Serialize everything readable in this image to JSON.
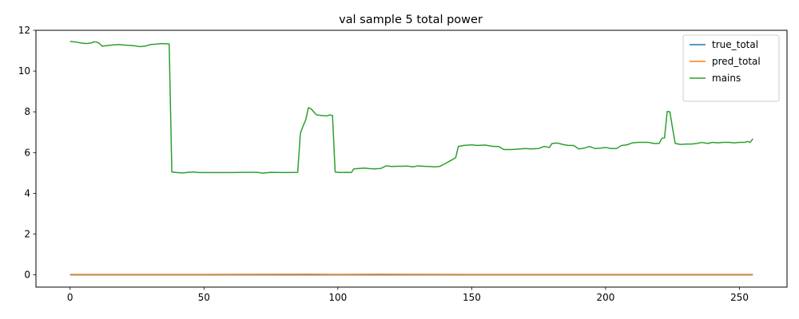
{
  "chart_data": {
    "type": "line",
    "title": "val sample 5 total power",
    "xlabel": "",
    "ylabel": "",
    "xlim": [
      -12.75,
      267.75
    ],
    "ylim": [
      -0.6,
      12.0
    ],
    "x_ticks": [
      0,
      50,
      100,
      150,
      200,
      250
    ],
    "y_ticks": [
      0,
      2,
      4,
      6,
      8,
      10,
      12
    ],
    "grid": false,
    "legend_position": "top-right",
    "series": [
      {
        "name": "true_total",
        "color": "#1f77b4",
        "points": [
          [
            0,
            0.0
          ],
          [
            255,
            0.0
          ]
        ]
      },
      {
        "name": "pred_total",
        "color": "#ff7f0e",
        "points": [
          [
            0,
            0.02
          ],
          [
            50,
            0.02
          ],
          [
            90,
            0.03
          ],
          [
            100,
            0.02
          ],
          [
            115,
            0.03
          ],
          [
            150,
            0.02
          ],
          [
            200,
            0.02
          ],
          [
            255,
            0.02
          ]
        ]
      },
      {
        "name": "mains",
        "color": "#2ca02c",
        "points": [
          [
            0,
            11.45
          ],
          [
            2,
            11.43
          ],
          [
            4,
            11.38
          ],
          [
            6,
            11.35
          ],
          [
            8,
            11.38
          ],
          [
            9,
            11.44
          ],
          [
            10,
            11.42
          ],
          [
            11,
            11.35
          ],
          [
            12,
            11.22
          ],
          [
            14,
            11.25
          ],
          [
            16,
            11.28
          ],
          [
            18,
            11.3
          ],
          [
            20,
            11.28
          ],
          [
            22,
            11.26
          ],
          [
            24,
            11.24
          ],
          [
            26,
            11.2
          ],
          [
            28,
            11.22
          ],
          [
            30,
            11.3
          ],
          [
            32,
            11.32
          ],
          [
            34,
            11.35
          ],
          [
            36,
            11.34
          ],
          [
            37,
            11.33
          ],
          [
            38,
            5.05
          ],
          [
            40,
            5.02
          ],
          [
            42,
            5.0
          ],
          [
            44,
            5.03
          ],
          [
            46,
            5.05
          ],
          [
            48,
            5.02
          ],
          [
            50,
            5.02
          ],
          [
            55,
            5.02
          ],
          [
            60,
            5.02
          ],
          [
            65,
            5.03
          ],
          [
            70,
            5.03
          ],
          [
            72,
            4.99
          ],
          [
            75,
            5.03
          ],
          [
            80,
            5.02
          ],
          [
            85,
            5.03
          ],
          [
            86,
            6.95
          ],
          [
            87,
            7.3
          ],
          [
            88,
            7.6
          ],
          [
            89,
            8.2
          ],
          [
            90,
            8.15
          ],
          [
            91,
            8.0
          ],
          [
            92,
            7.85
          ],
          [
            94,
            7.82
          ],
          [
            96,
            7.8
          ],
          [
            97,
            7.85
          ],
          [
            98,
            7.82
          ],
          [
            99,
            5.05
          ],
          [
            101,
            5.02
          ],
          [
            103,
            5.03
          ],
          [
            105,
            5.02
          ],
          [
            106,
            5.2
          ],
          [
            108,
            5.22
          ],
          [
            110,
            5.24
          ],
          [
            112,
            5.21
          ],
          [
            114,
            5.2
          ],
          [
            116,
            5.22
          ],
          [
            118,
            5.35
          ],
          [
            120,
            5.32
          ],
          [
            122,
            5.33
          ],
          [
            124,
            5.33
          ],
          [
            126,
            5.34
          ],
          [
            128,
            5.3
          ],
          [
            130,
            5.35
          ],
          [
            132,
            5.33
          ],
          [
            134,
            5.32
          ],
          [
            136,
            5.3
          ],
          [
            138,
            5.32
          ],
          [
            140,
            5.45
          ],
          [
            142,
            5.6
          ],
          [
            144,
            5.75
          ],
          [
            145,
            6.3
          ],
          [
            147,
            6.35
          ],
          [
            150,
            6.38
          ],
          [
            152,
            6.35
          ],
          [
            155,
            6.37
          ],
          [
            158,
            6.3
          ],
          [
            160,
            6.3
          ],
          [
            162,
            6.15
          ],
          [
            165,
            6.15
          ],
          [
            168,
            6.18
          ],
          [
            170,
            6.2
          ],
          [
            172,
            6.18
          ],
          [
            175,
            6.2
          ],
          [
            177,
            6.3
          ],
          [
            179,
            6.25
          ],
          [
            180,
            6.45
          ],
          [
            182,
            6.47
          ],
          [
            184,
            6.4
          ],
          [
            186,
            6.35
          ],
          [
            188,
            6.35
          ],
          [
            190,
            6.18
          ],
          [
            192,
            6.22
          ],
          [
            194,
            6.3
          ],
          [
            196,
            6.2
          ],
          [
            198,
            6.22
          ],
          [
            200,
            6.25
          ],
          [
            202,
            6.2
          ],
          [
            204,
            6.2
          ],
          [
            206,
            6.35
          ],
          [
            208,
            6.38
          ],
          [
            210,
            6.48
          ],
          [
            212,
            6.5
          ],
          [
            214,
            6.5
          ],
          [
            216,
            6.5
          ],
          [
            218,
            6.45
          ],
          [
            219,
            6.45
          ],
          [
            220,
            6.45
          ],
          [
            221,
            6.7
          ],
          [
            222,
            6.72
          ],
          [
            223,
            8.02
          ],
          [
            224,
            8.0
          ],
          [
            225,
            7.2
          ],
          [
            226,
            6.45
          ],
          [
            228,
            6.4
          ],
          [
            230,
            6.42
          ],
          [
            232,
            6.42
          ],
          [
            234,
            6.45
          ],
          [
            236,
            6.5
          ],
          [
            238,
            6.45
          ],
          [
            240,
            6.5
          ],
          [
            242,
            6.48
          ],
          [
            244,
            6.5
          ],
          [
            246,
            6.5
          ],
          [
            248,
            6.48
          ],
          [
            250,
            6.5
          ],
          [
            252,
            6.5
          ],
          [
            253,
            6.55
          ],
          [
            254,
            6.5
          ],
          [
            255,
            6.68
          ]
        ]
      }
    ]
  }
}
